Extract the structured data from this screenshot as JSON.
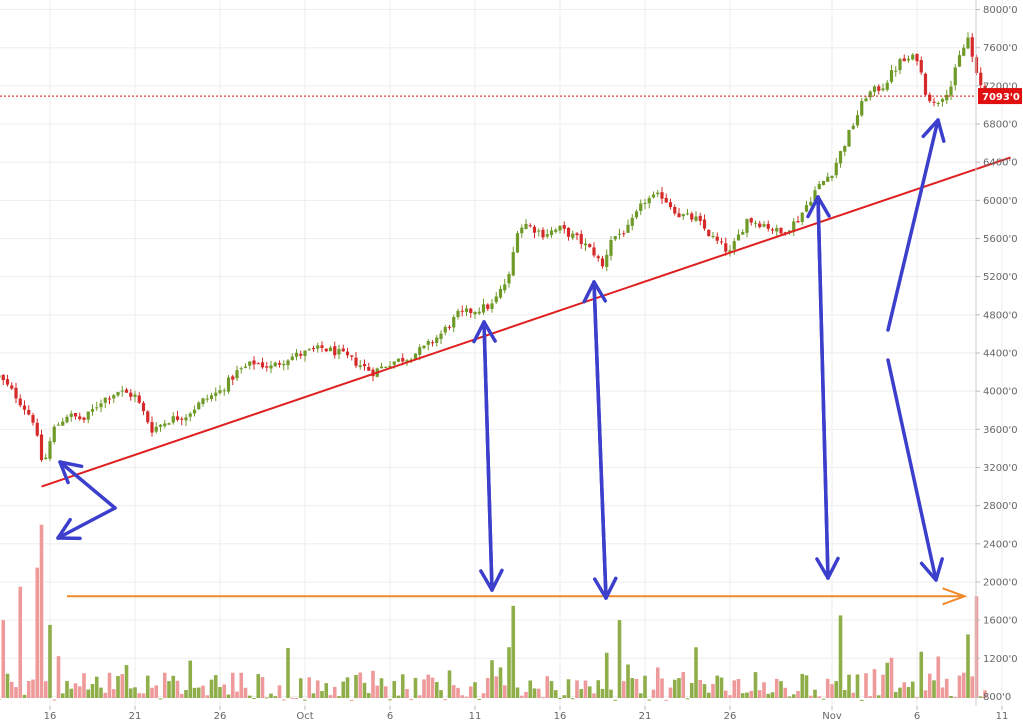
{
  "chart_data": {
    "type": "candlestick",
    "title": "",
    "xlabel": "",
    "ylabel": "",
    "y_axis_position": "right",
    "ylim": [
      700,
      8100
    ],
    "y_ticks": [
      "800'0",
      "1200'0",
      "1600'0",
      "2000'0",
      "2400'0",
      "2800'0",
      "3200'0",
      "3600'0",
      "4000'0",
      "4400'0",
      "4800'0",
      "5200'0",
      "5600'0",
      "6000'0",
      "6400'0",
      "6800'0",
      "7200'0",
      "7600'0",
      "8000'0"
    ],
    "x_ticks": [
      {
        "label": "16",
        "day": 16
      },
      {
        "label": "21",
        "day": 21
      },
      {
        "label": "26",
        "day": 26
      },
      {
        "label": "Oct",
        "day": 31
      },
      {
        "label": "6",
        "day": 36
      },
      {
        "label": "11",
        "day": 41
      },
      {
        "label": "16",
        "day": 46
      },
      {
        "label": "21",
        "day": 51
      },
      {
        "label": "26",
        "day": 56
      },
      {
        "label": "Nov",
        "day": 62
      },
      {
        "label": "6",
        "day": 67
      },
      {
        "label": "11",
        "day": 72
      }
    ],
    "xlim": [
      13,
      71
    ],
    "grid": true,
    "current_price": {
      "label": "7093'0",
      "value": 7093
    },
    "price_path": [
      [
        13.0,
        4150
      ],
      [
        14.0,
        3950
      ],
      [
        15.0,
        3700
      ],
      [
        15.6,
        3200
      ],
      [
        16.2,
        3600
      ],
      [
        17.0,
        3750
      ],
      [
        18.0,
        3700
      ],
      [
        19.0,
        3900
      ],
      [
        20.0,
        4000
      ],
      [
        21.0,
        3950
      ],
      [
        22.0,
        3600
      ],
      [
        23.0,
        3700
      ],
      [
        24.0,
        3750
      ],
      [
        25.0,
        3900
      ],
      [
        26.0,
        4000
      ],
      [
        27.0,
        4200
      ],
      [
        28.0,
        4300
      ],
      [
        29.0,
        4250
      ],
      [
        30.0,
        4350
      ],
      [
        31.0,
        4400
      ],
      [
        32.0,
        4450
      ],
      [
        33.0,
        4400
      ],
      [
        34.0,
        4300
      ],
      [
        35.0,
        4200
      ],
      [
        36.0,
        4300
      ],
      [
        37.0,
        4350
      ],
      [
        38.0,
        4450
      ],
      [
        39.0,
        4600
      ],
      [
        40.0,
        4800
      ],
      [
        41.0,
        4850
      ],
      [
        42.0,
        4900
      ],
      [
        43.0,
        5200
      ],
      [
        43.5,
        5700
      ],
      [
        44.0,
        5750
      ],
      [
        45.0,
        5650
      ],
      [
        46.0,
        5700
      ],
      [
        47.0,
        5600
      ],
      [
        48.0,
        5450
      ],
      [
        48.5,
        5300
      ],
      [
        49.0,
        5600
      ],
      [
        50.0,
        5700
      ],
      [
        51.0,
        6000
      ],
      [
        52.0,
        6050
      ],
      [
        53.0,
        5850
      ],
      [
        54.0,
        5800
      ],
      [
        55.0,
        5600
      ],
      [
        56.0,
        5450
      ],
      [
        57.0,
        5800
      ],
      [
        58.0,
        5750
      ],
      [
        59.0,
        5650
      ],
      [
        60.0,
        5800
      ],
      [
        61.0,
        6100
      ],
      [
        62.0,
        6300
      ],
      [
        63.0,
        6700
      ],
      [
        64.0,
        7100
      ],
      [
        65.0,
        7200
      ],
      [
        66.0,
        7450
      ],
      [
        67.0,
        7500
      ],
      [
        67.5,
        7150
      ],
      [
        68.0,
        7000
      ],
      [
        69.0,
        7200
      ],
      [
        69.5,
        7500
      ],
      [
        70.0,
        7700
      ],
      [
        70.5,
        7300
      ],
      [
        71.0,
        7093
      ]
    ],
    "volume": {
      "baseline": 700,
      "spikes": [
        {
          "day": 13.2,
          "value": 1600,
          "up": false
        },
        {
          "day": 14.3,
          "value": 1950,
          "up": false
        },
        {
          "day": 15.2,
          "value": 2150,
          "up": false
        },
        {
          "day": 15.6,
          "value": 2600,
          "up": false
        },
        {
          "day": 16.0,
          "value": 1550,
          "up": true
        },
        {
          "day": 43.3,
          "value": 1750,
          "up": true
        },
        {
          "day": 49.4,
          "value": 1600,
          "up": true
        },
        {
          "day": 62.6,
          "value": 1650,
          "up": true
        },
        {
          "day": 70.4,
          "value": 1850,
          "up": false
        },
        {
          "day": 70.1,
          "value": 1450,
          "up": true
        }
      ]
    },
    "annotations": {
      "support_line": {
        "color": "#e02020",
        "from": [
          15.5,
          3000
        ],
        "to": [
          72.5,
          6450
        ]
      },
      "volume_line": {
        "color": "#f0892a",
        "from": [
          17.0,
          1850
        ],
        "to": [
          69.8,
          1850
        ]
      },
      "arrows_color": "#3b3fcc"
    },
    "colors": {
      "up": "#6f9a28",
      "down": "#d62a2a",
      "vol_up": "#8fae4a",
      "vol_down": "#ef9a9a",
      "grid": "#eeeeee",
      "price_tag": "#e01010"
    }
  }
}
